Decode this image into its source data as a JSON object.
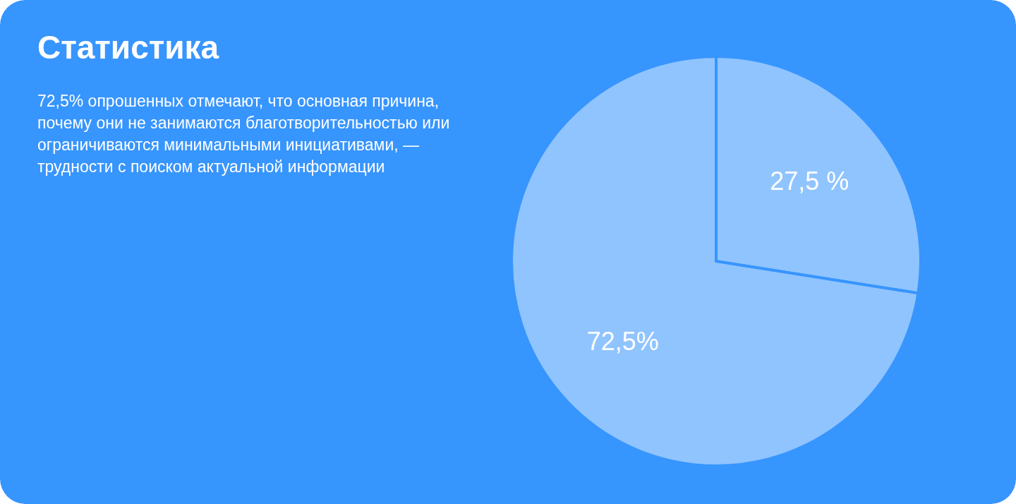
{
  "chart_data": {
    "type": "pie",
    "title": "Статистика",
    "subtitle": "72,5% опрошенных отмечают, что основная причина, почему они не занимаются благотворительностью или ограничиваются минимальными инициативами, — трудности с поиском актуальной информации",
    "categories": [
      null,
      null
    ],
    "values": [
      27.5,
      72.5
    ],
    "colors": [
      "#90c4fe",
      "#90c4fe"
    ],
    "value_labels": [
      "27,5 %",
      "72,5%"
    ]
  }
}
